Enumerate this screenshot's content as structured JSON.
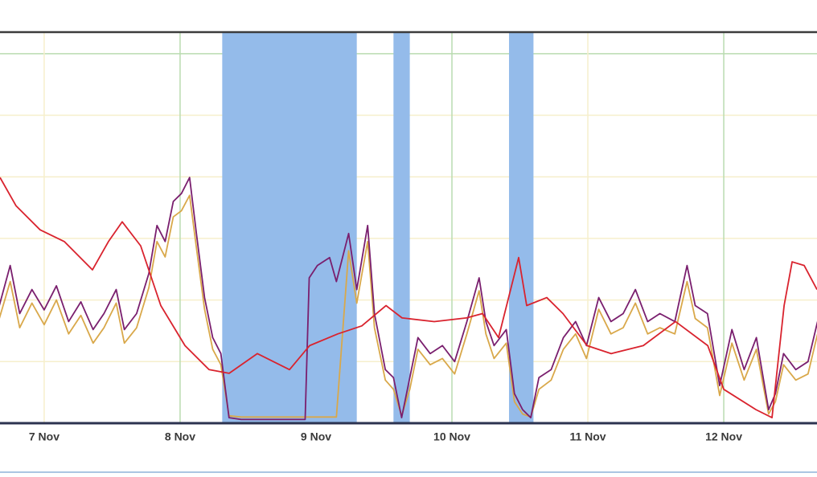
{
  "chart_data": {
    "type": "line",
    "xlim": [
      6.675,
      12.686
    ],
    "ylim": [
      0,
      6.35
    ],
    "xticks": [
      {
        "value": 7,
        "label": "7 Nov"
      },
      {
        "value": 8,
        "label": "8 Nov"
      },
      {
        "value": 9,
        "label": "9 Nov"
      },
      {
        "value": 10,
        "label": "10 Nov"
      },
      {
        "value": 11,
        "label": "11 Nov"
      },
      {
        "value": 12,
        "label": "12 Nov"
      }
    ],
    "yticks": [
      1,
      2,
      3,
      4,
      5,
      6
    ],
    "grid": true,
    "shaded_regions": [
      [
        8.31,
        9.3
      ],
      [
        9.57,
        9.69
      ],
      [
        10.42,
        10.6
      ]
    ],
    "shade_color": "#94bbea",
    "series": [
      {
        "color": "#d9a84a",
        "x": [
          6.67,
          6.75,
          6.82,
          6.91,
          7.0,
          7.09,
          7.18,
          7.27,
          7.36,
          7.44,
          7.53,
          7.59,
          7.68,
          7.77,
          7.83,
          7.89,
          7.95,
          8.01,
          8.07,
          8.12,
          8.18,
          8.24,
          8.3,
          8.36,
          8.45,
          8.92,
          8.95,
          9.01,
          9.1,
          9.15,
          9.24,
          9.3,
          9.38,
          9.43,
          9.51,
          9.57,
          9.63,
          9.69,
          9.75,
          9.84,
          9.93,
          10.02,
          10.11,
          10.2,
          10.25,
          10.31,
          10.4,
          10.46,
          10.52,
          10.58,
          10.64,
          10.73,
          10.82,
          10.91,
          10.99,
          11.08,
          11.17,
          11.26,
          11.35,
          11.44,
          11.53,
          11.64,
          11.73,
          11.79,
          11.88,
          11.97,
          12.06,
          12.15,
          12.24,
          12.33,
          12.38,
          12.44,
          12.53,
          12.62,
          12.69
        ],
        "values": [
          1.7,
          2.3,
          1.55,
          1.95,
          1.6,
          2.0,
          1.45,
          1.75,
          1.3,
          1.55,
          1.95,
          1.3,
          1.55,
          2.2,
          2.95,
          2.7,
          3.35,
          3.45,
          3.7,
          2.85,
          1.85,
          1.2,
          0.95,
          0.12,
          0.1,
          0.1,
          0.1,
          0.1,
          0.1,
          0.1,
          2.8,
          1.95,
          2.95,
          1.55,
          0.7,
          0.55,
          0.12,
          0.55,
          1.2,
          0.95,
          1.05,
          0.8,
          1.45,
          2.15,
          1.45,
          1.05,
          1.3,
          0.35,
          0.15,
          0.1,
          0.55,
          0.7,
          1.2,
          1.45,
          1.05,
          1.85,
          1.45,
          1.55,
          1.95,
          1.45,
          1.55,
          1.45,
          2.3,
          1.7,
          1.55,
          0.45,
          1.3,
          0.7,
          1.2,
          0.15,
          0.35,
          0.95,
          0.7,
          0.8,
          1.45
        ]
      },
      {
        "color": "#7a1f6e",
        "x": [
          6.67,
          6.75,
          6.82,
          6.91,
          7.0,
          7.09,
          7.18,
          7.27,
          7.36,
          7.44,
          7.53,
          7.59,
          7.68,
          7.77,
          7.83,
          7.89,
          7.95,
          8.01,
          8.07,
          8.12,
          8.18,
          8.24,
          8.3,
          8.36,
          8.45,
          8.92,
          8.95,
          9.01,
          9.1,
          9.15,
          9.24,
          9.3,
          9.38,
          9.43,
          9.51,
          9.57,
          9.63,
          9.69,
          9.75,
          9.84,
          9.93,
          10.02,
          10.11,
          10.2,
          10.25,
          10.31,
          10.4,
          10.46,
          10.52,
          10.58,
          10.64,
          10.73,
          10.82,
          10.91,
          10.99,
          11.08,
          11.17,
          11.26,
          11.35,
          11.44,
          11.53,
          11.64,
          11.73,
          11.79,
          11.88,
          11.97,
          12.06,
          12.15,
          12.24,
          12.33,
          12.38,
          12.44,
          12.53,
          12.62,
          12.69
        ],
        "values": [
          1.91,
          2.56,
          1.78,
          2.17,
          1.84,
          2.23,
          1.65,
          1.97,
          1.52,
          1.78,
          2.17,
          1.52,
          1.78,
          2.43,
          3.21,
          2.95,
          3.6,
          3.73,
          3.99,
          3.08,
          2.04,
          1.39,
          1.13,
          0.09,
          0.06,
          0.06,
          2.36,
          2.56,
          2.69,
          2.3,
          3.08,
          2.17,
          3.21,
          1.78,
          0.87,
          0.74,
          0.09,
          0.74,
          1.39,
          1.13,
          1.26,
          1.0,
          1.65,
          2.36,
          1.65,
          1.26,
          1.52,
          0.48,
          0.22,
          0.09,
          0.74,
          0.87,
          1.39,
          1.65,
          1.26,
          2.04,
          1.65,
          1.78,
          2.17,
          1.65,
          1.78,
          1.65,
          2.56,
          1.91,
          1.78,
          0.61,
          1.52,
          0.87,
          1.39,
          0.22,
          0.48,
          1.13,
          0.87,
          1.0,
          1.65
        ]
      },
      {
        "color": "#d9232e",
        "x": [
          6.675,
          6.793,
          6.97,
          7.148,
          7.355,
          7.473,
          7.574,
          7.71,
          7.858,
          8.036,
          8.213,
          8.361,
          8.568,
          8.805,
          8.953,
          9.16,
          9.337,
          9.515,
          9.633,
          9.87,
          10.107,
          10.225,
          10.343,
          10.491,
          10.55,
          10.698,
          10.817,
          10.994,
          11.172,
          11.408,
          11.645,
          11.882,
          12.0,
          12.237,
          12.355,
          12.444,
          12.503,
          12.592,
          12.686
        ],
        "values": [
          3.99,
          3.53,
          3.14,
          2.95,
          2.49,
          2.95,
          3.27,
          2.88,
          1.91,
          1.26,
          0.87,
          0.81,
          1.13,
          0.87,
          1.26,
          1.45,
          1.58,
          1.91,
          1.71,
          1.65,
          1.71,
          1.78,
          1.39,
          2.69,
          1.91,
          2.04,
          1.78,
          1.26,
          1.13,
          1.26,
          1.65,
          1.26,
          0.55,
          0.22,
          0.09,
          1.91,
          2.62,
          2.56,
          2.17
        ]
      }
    ]
  }
}
